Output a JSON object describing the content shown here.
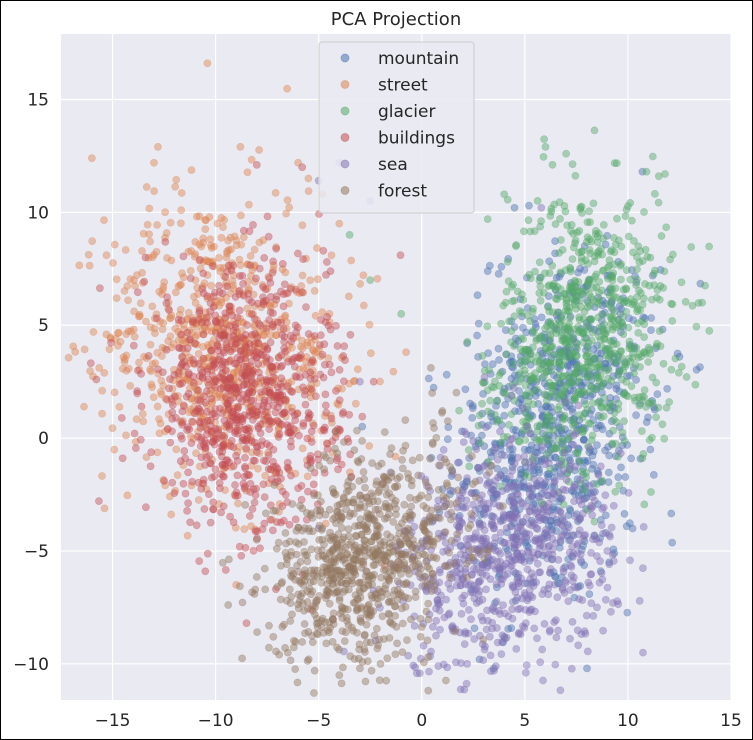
{
  "chart_data": {
    "type": "scatter",
    "title": "PCA Projection",
    "xlabel": "",
    "ylabel": "",
    "xlim": [
      -17.5,
      15
    ],
    "ylim": [
      -11.6,
      17.9
    ],
    "xticks": [
      -15,
      -10,
      -5,
      0,
      5,
      10,
      15
    ],
    "yticks": [
      -10,
      -5,
      0,
      5,
      10,
      15
    ],
    "xtick_labels": [
      "−15",
      "−10",
      "−5",
      "0",
      "5",
      "10",
      "15"
    ],
    "ytick_labels": [
      "−10",
      "−5",
      "0",
      "5",
      "10",
      "15"
    ],
    "grid": true,
    "legend_position": "top-center",
    "point_alpha": 0.45,
    "series": [
      {
        "name": "mountain",
        "color": "#4c72b0",
        "clusters": [
          {
            "cx": 6.0,
            "cy": -1.0,
            "sx": 2.2,
            "sy": 3.2,
            "n": 500
          },
          {
            "cx": 7.5,
            "cy": 3.5,
            "sx": 2.0,
            "sy": 2.5,
            "n": 250
          }
        ],
        "points": [
          [
            4.5,
            10.2
          ],
          [
            5.2,
            10.3
          ],
          [
            3.2,
            7.4
          ],
          [
            10.7,
            11.8
          ],
          [
            12.5,
            3.6
          ],
          [
            11.2,
            7.2
          ],
          [
            2.2,
            4.2
          ],
          [
            4.0,
            -8.8
          ],
          [
            2.8,
            -9.8
          ],
          [
            3.5,
            -10.2
          ]
        ]
      },
      {
        "name": "street",
        "color": "#dd8452",
        "clusters": [
          {
            "cx": -10.5,
            "cy": 4.5,
            "sx": 2.4,
            "sy": 3.2,
            "n": 550
          },
          {
            "cx": -7.0,
            "cy": 3.0,
            "sx": 2.5,
            "sy": 3.0,
            "n": 200
          }
        ],
        "points": [
          [
            -10.4,
            16.6
          ],
          [
            -16.0,
            12.4
          ],
          [
            -12.8,
            12.9
          ],
          [
            -8.8,
            12.9
          ],
          [
            -6.0,
            12.2
          ],
          [
            -5.5,
            11.5
          ],
          [
            -4.8,
            10.8
          ],
          [
            -14.8,
            6.2
          ],
          [
            -15.5,
            2.1
          ],
          [
            -9.0,
            -6.5
          ],
          [
            -4.0,
            9.5
          ]
        ]
      },
      {
        "name": "glacier",
        "color": "#55a868",
        "clusters": [
          {
            "cx": 8.2,
            "cy": 5.0,
            "sx": 2.0,
            "sy": 3.0,
            "n": 650
          },
          {
            "cx": 6.0,
            "cy": 2.0,
            "sx": 1.8,
            "sy": 2.0,
            "n": 150
          }
        ],
        "points": [
          [
            7.0,
            12.6
          ],
          [
            6.0,
            12.9
          ],
          [
            10.9,
            11.8
          ],
          [
            11.5,
            11.6
          ],
          [
            11.8,
            11.7
          ],
          [
            13.6,
            6.0
          ],
          [
            12.6,
            6.9
          ],
          [
            3.2,
            9.7
          ],
          [
            4.0,
            10.8
          ],
          [
            -3.5,
            9.0
          ],
          [
            -2.5,
            7.0
          ],
          [
            -1.0,
            5.5
          ],
          [
            12.0,
            1.6
          ]
        ]
      },
      {
        "name": "buildings",
        "color": "#c44e52",
        "clusters": [
          {
            "cx": -9.0,
            "cy": 2.0,
            "sx": 2.2,
            "sy": 2.8,
            "n": 650
          },
          {
            "cx": -6.5,
            "cy": 0.5,
            "sx": 2.0,
            "sy": 2.5,
            "n": 150
          }
        ],
        "points": [
          [
            -8.0,
            12.1
          ],
          [
            -5.8,
            12.0
          ],
          [
            -12.2,
            -0.2
          ],
          [
            -10.5,
            -5.9
          ],
          [
            -8.5,
            -8.2
          ],
          [
            -4.6,
            7.8
          ],
          [
            -12.5,
            -1.9
          ],
          [
            -13.4,
            8.0
          ]
        ]
      },
      {
        "name": "sea",
        "color": "#8172b3",
        "clusters": [
          {
            "cx": 5.0,
            "cy": -4.5,
            "sx": 2.2,
            "sy": 2.4,
            "n": 550
          },
          {
            "cx": 2.0,
            "cy": -6.5,
            "sx": 1.6,
            "sy": 2.0,
            "n": 200
          }
        ],
        "points": [
          [
            -5.0,
            11.4
          ],
          [
            -4.0,
            12.2
          ],
          [
            5.8,
            10.2
          ],
          [
            -2.5,
            10.5
          ],
          [
            2.2,
            -10.0
          ],
          [
            3.5,
            -10.3
          ],
          [
            0.8,
            -10.1
          ],
          [
            8.5,
            -7.5
          ],
          [
            9.0,
            -5.0
          ],
          [
            -5.0,
            -4.0
          ],
          [
            -3.0,
            2.5
          ]
        ]
      },
      {
        "name": "forest",
        "color": "#937860",
        "clusters": [
          {
            "cx": -3.5,
            "cy": -6.0,
            "sx": 2.0,
            "sy": 1.9,
            "n": 600
          },
          {
            "cx": -1.0,
            "cy": -3.5,
            "sx": 2.0,
            "sy": 2.0,
            "n": 250
          }
        ],
        "points": [
          [
            -7.2,
            -8.8
          ],
          [
            -6.5,
            -9.5
          ],
          [
            -5.2,
            -10.3
          ],
          [
            -4.0,
            -10.5
          ],
          [
            -3.0,
            -10.2
          ],
          [
            -2.0,
            -10.0
          ],
          [
            -8.0,
            -4.5
          ],
          [
            1.0,
            1.2
          ],
          [
            0.5,
            2.0
          ],
          [
            -0.8,
            0.8
          ]
        ]
      }
    ]
  }
}
